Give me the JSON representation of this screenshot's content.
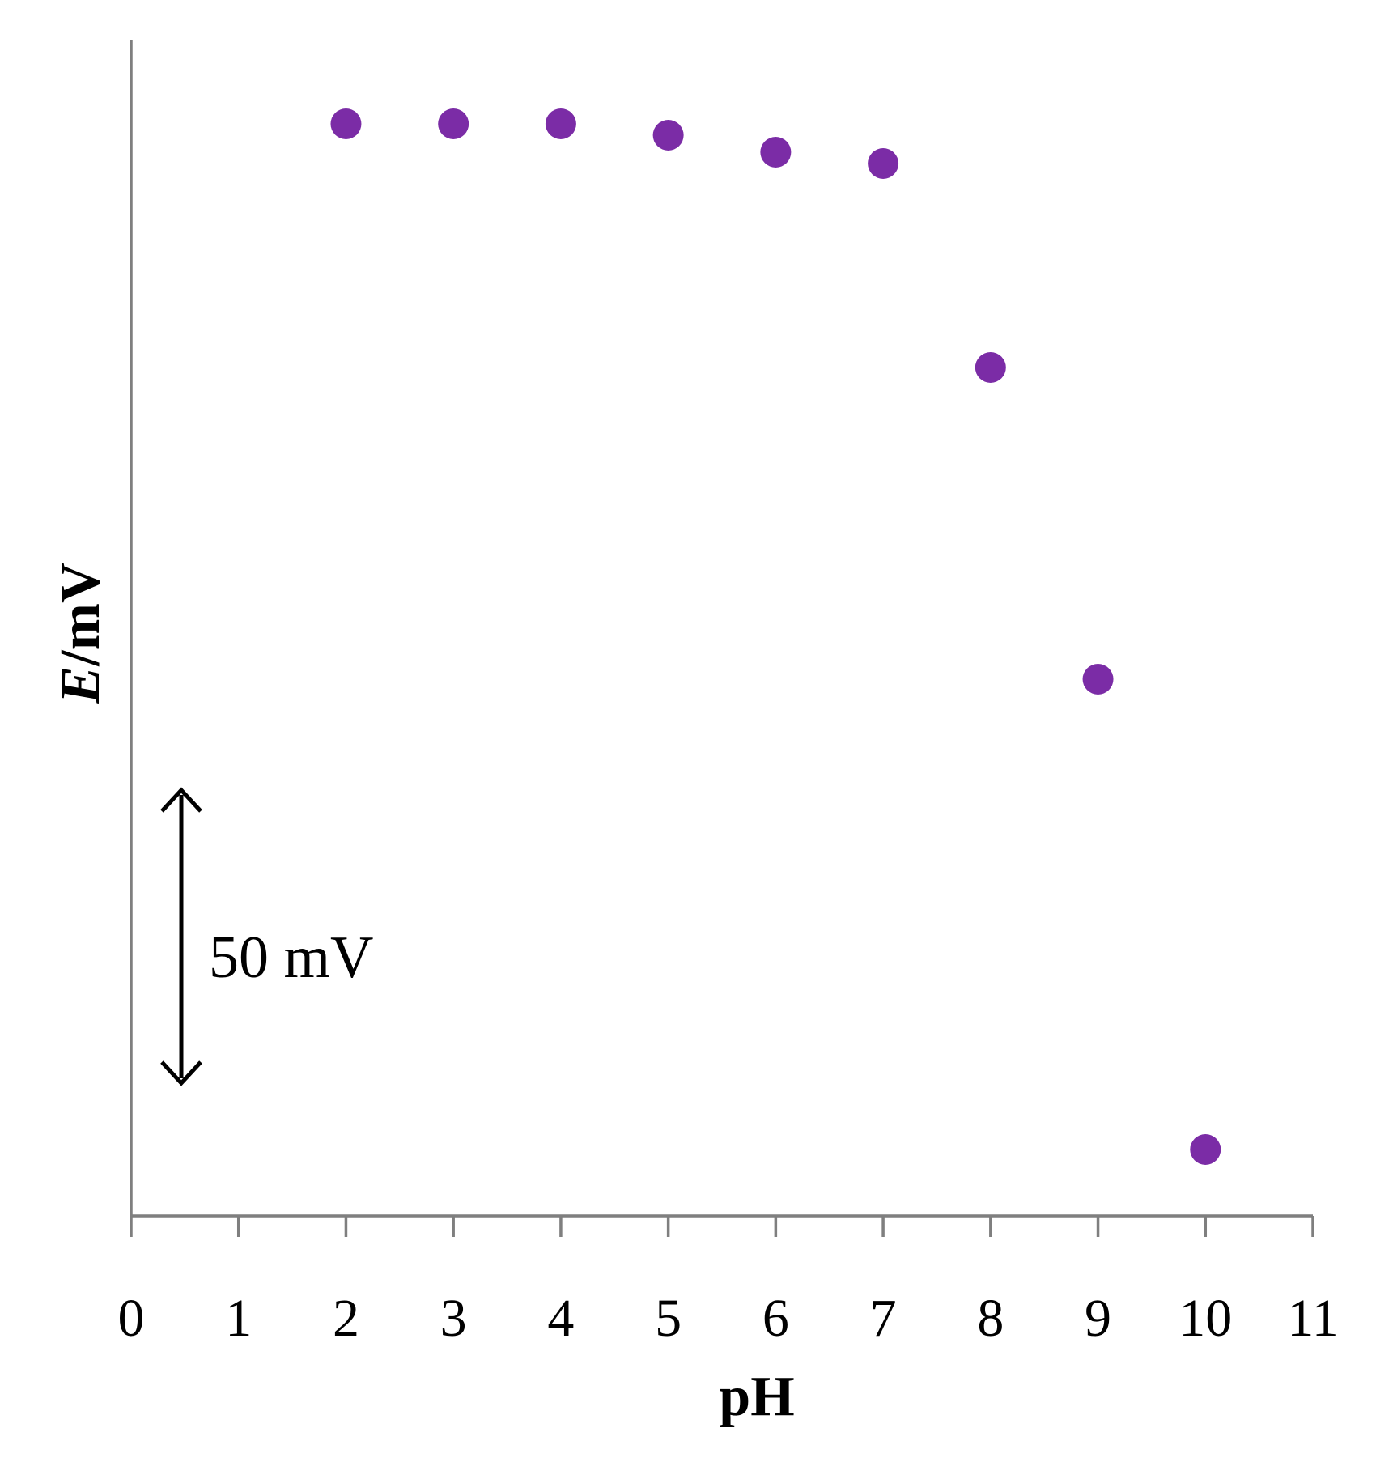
{
  "chart_data": {
    "type": "scatter",
    "title": "",
    "xlabel": "pH",
    "ylabel_italic": "E",
    "ylabel_rest": "/mV",
    "xlim": [
      0,
      11
    ],
    "x_ticks": [
      "0",
      "1",
      "2",
      "3",
      "4",
      "5",
      "6",
      "7",
      "8",
      "9",
      "10",
      "11"
    ],
    "y_ticks_shown": false,
    "grid": false,
    "legend": "none",
    "scale_bar": {
      "label": "50 mV",
      "value_mV": 50
    },
    "series": [
      {
        "color": "#7b2ca6",
        "points": [
          {
            "x": 2,
            "y": 0
          },
          {
            "x": 3,
            "y": 0
          },
          {
            "x": 4,
            "y": 0
          },
          {
            "x": 5,
            "y": -2
          },
          {
            "x": 6,
            "y": -5
          },
          {
            "x": 7,
            "y": -7
          },
          {
            "x": 8,
            "y": -43
          },
          {
            "x": 9,
            "y": -98
          },
          {
            "x": 10,
            "y": -181
          }
        ]
      }
    ]
  }
}
